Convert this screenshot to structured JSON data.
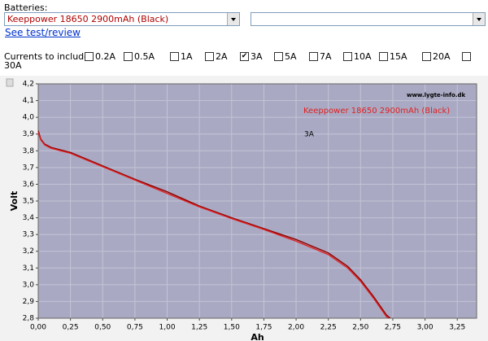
{
  "form": {
    "batteries_label": "Batteries:",
    "battery_select": "Keeppower 18650 2900mAh (Black)",
    "link": "See test/review",
    "currents_label": "Currents to include:",
    "currents": [
      {
        "label": "0.2A",
        "checked": false
      },
      {
        "label": "0.5A",
        "checked": false
      },
      {
        "label": "1A",
        "checked": false
      },
      {
        "label": "2A",
        "checked": false
      },
      {
        "label": "3A",
        "checked": true
      },
      {
        "label": "5A",
        "checked": false
      },
      {
        "label": "7A",
        "checked": false
      },
      {
        "label": "10A",
        "checked": false
      },
      {
        "label": "15A",
        "checked": false
      },
      {
        "label": "20A",
        "checked": false
      },
      {
        "label": "30A",
        "checked": false
      }
    ]
  },
  "chart_data": {
    "type": "line",
    "xlabel": "Ah",
    "ylabel": "Volt",
    "watermark": "www.lygte-info.dk",
    "annotation": "3A",
    "x": [
      0,
      0.02,
      0.05,
      0.1,
      0.25,
      0.5,
      0.75,
      1.0,
      1.25,
      1.5,
      1.75,
      2.0,
      2.25,
      2.4,
      2.5,
      2.6,
      2.7,
      2.73
    ],
    "series": [
      {
        "name": "Keeppower 18650 2900mAh (Black)",
        "color": "#8b0000",
        "values": [
          3.92,
          3.87,
          3.84,
          3.82,
          3.79,
          3.71,
          3.63,
          3.555,
          3.47,
          3.4,
          3.335,
          3.27,
          3.19,
          3.11,
          3.03,
          2.93,
          2.82,
          2.8
        ]
      },
      {
        "color": "#e02020",
        "values": [
          3.91,
          3.865,
          3.835,
          3.815,
          3.785,
          3.705,
          3.625,
          3.545,
          3.465,
          3.395,
          3.33,
          3.26,
          3.18,
          3.1,
          3.02,
          2.92,
          2.81,
          2.79
        ]
      }
    ],
    "xlim": [
      0,
      3.4
    ],
    "ylim": [
      2.8,
      4.2
    ],
    "grid": true,
    "xticks": [
      {
        "value": 0,
        "label": "0,00"
      },
      {
        "value": 0.25,
        "label": "0,25"
      },
      {
        "value": 0.5,
        "label": "0,50"
      },
      {
        "value": 0.75,
        "label": "0,75"
      },
      {
        "value": 1,
        "label": "1,00"
      },
      {
        "value": 1.25,
        "label": "1,25"
      },
      {
        "value": 1.5,
        "label": "1,50"
      },
      {
        "value": 1.75,
        "label": "1,75"
      },
      {
        "value": 2,
        "label": "2,00"
      },
      {
        "value": 2.25,
        "label": "2,25"
      },
      {
        "value": 2.5,
        "label": "2,50"
      },
      {
        "value": 2.75,
        "label": "2,75"
      },
      {
        "value": 3,
        "label": "3,00"
      },
      {
        "value": 3.25,
        "label": "3,25"
      }
    ],
    "yticks": [
      {
        "value": 2.8,
        "label": "2,8"
      },
      {
        "value": 2.9,
        "label": "2,9"
      },
      {
        "value": 3.0,
        "label": "3,0"
      },
      {
        "value": 3.1,
        "label": "3,1"
      },
      {
        "value": 3.2,
        "label": "3,2"
      },
      {
        "value": 3.3,
        "label": "3,3"
      },
      {
        "value": 3.4,
        "label": "3,4"
      },
      {
        "value": 3.5,
        "label": "3,5"
      },
      {
        "value": 3.6,
        "label": "3,6"
      },
      {
        "value": 3.7,
        "label": "3,7"
      },
      {
        "value": 3.8,
        "label": "3,8"
      },
      {
        "value": 3.9,
        "label": "3,9"
      },
      {
        "value": 4.0,
        "label": "4,0"
      },
      {
        "value": 4.1,
        "label": "4,1"
      },
      {
        "value": 4.2,
        "label": "4,2"
      }
    ]
  }
}
